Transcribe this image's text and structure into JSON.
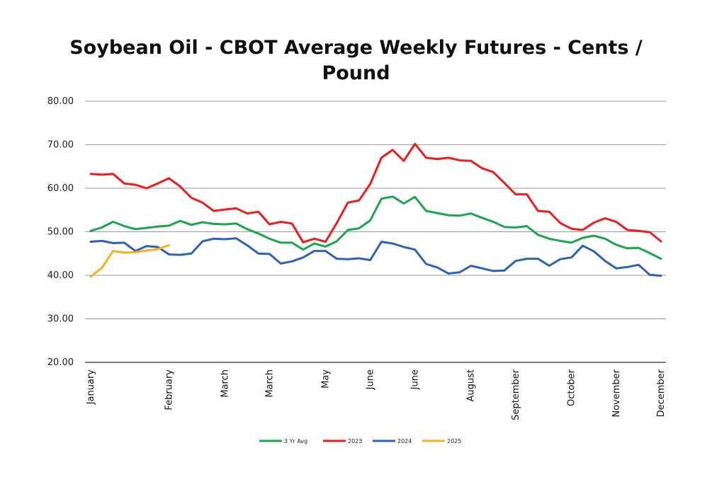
{
  "chart_data": {
    "type": "line",
    "title_lines": [
      "Soybean Oil - CBOT Average Weekly Futures - Cents /",
      "Pound"
    ],
    "ylim": [
      20,
      80
    ],
    "y_ticks": [
      "80.00",
      "70.00",
      "60.00",
      "50.00",
      "40.00",
      "30.00",
      "20.00"
    ],
    "y_tick_values": [
      80,
      70,
      60,
      50,
      40,
      30,
      20
    ],
    "grid": true,
    "legend_position": "bottom",
    "weeks": 52,
    "category_labels": [
      {
        "label": "January",
        "week": 1
      },
      {
        "label": "February",
        "week": 8
      },
      {
        "label": "March",
        "week": 13
      },
      {
        "label": "March",
        "week": 17
      },
      {
        "label": "May",
        "week": 22
      },
      {
        "label": "June",
        "week": 26
      },
      {
        "label": "June",
        "week": 30
      },
      {
        "label": "August",
        "week": 35
      },
      {
        "label": "September",
        "week": 39
      },
      {
        "label": "October",
        "week": 44
      },
      {
        "label": "November",
        "week": 48
      },
      {
        "label": "December",
        "week": 52
      }
    ],
    "series": [
      {
        "name": "3 Yr Avg",
        "color": "#1aa64a",
        "values": [
          50.2,
          51.0,
          52.3,
          51.3,
          50.6,
          50.9,
          51.2,
          51.4,
          52.5,
          51.6,
          52.2,
          51.8,
          51.7,
          51.9,
          50.6,
          49.6,
          48.4,
          47.5,
          47.5,
          45.9,
          47.3,
          46.6,
          47.8,
          50.4,
          50.8,
          52.6,
          57.6,
          58.1,
          56.5,
          58.0,
          54.8,
          54.3,
          53.8,
          53.7,
          54.2,
          53.2,
          52.3,
          51.1,
          51.0,
          51.3,
          49.3,
          48.4,
          47.9,
          47.5,
          48.6,
          49.1,
          48.4,
          47.0,
          46.2,
          46.3,
          45.1,
          43.8
        ]
      },
      {
        "name": "2023",
        "color": "#ef1c1c",
        "values": [
          63.3,
          63.1,
          63.3,
          61.1,
          60.8,
          60.0,
          61.1,
          62.3,
          60.4,
          57.8,
          56.7,
          54.8,
          55.1,
          55.4,
          54.2,
          54.6,
          51.7,
          52.3,
          51.9,
          47.6,
          48.4,
          47.7,
          52.0,
          56.7,
          57.2,
          61.0,
          67.0,
          68.8,
          66.3,
          70.2,
          67.0,
          66.7,
          67.0,
          66.4,
          66.3,
          64.6,
          63.7,
          61.2,
          58.6,
          58.6,
          54.8,
          54.6,
          52.0,
          50.7,
          50.4,
          52.1,
          53.1,
          52.3,
          50.4,
          50.2,
          49.9,
          47.8
        ]
      },
      {
        "name": "2024",
        "color": "#2d62bc",
        "values": [
          47.7,
          47.9,
          47.4,
          47.5,
          45.6,
          46.7,
          46.5,
          44.8,
          44.7,
          45.0,
          47.8,
          48.4,
          48.3,
          48.5,
          46.9,
          45.0,
          44.9,
          42.7,
          43.2,
          44.1,
          45.6,
          45.6,
          43.8,
          43.7,
          43.9,
          43.5,
          47.7,
          47.3,
          46.5,
          45.9,
          42.6,
          41.8,
          40.4,
          40.7,
          42.2,
          41.6,
          41.0,
          41.1,
          43.3,
          43.8,
          43.8,
          42.2,
          43.7,
          44.1,
          46.8,
          45.5,
          43.3,
          41.6,
          41.9,
          42.4,
          40.1,
          39.9
        ]
      },
      {
        "name": "2025",
        "color": "#f5b21b",
        "values": [
          39.7,
          41.7,
          45.6,
          45.2,
          45.3,
          45.7,
          46.0,
          46.9
        ]
      }
    ]
  }
}
